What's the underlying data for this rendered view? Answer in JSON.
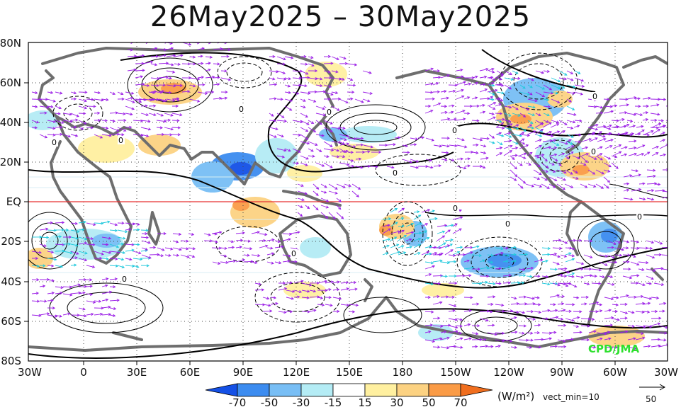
{
  "title": "26May2025 – 30May2025",
  "lat_labels": [
    "80N",
    "60N",
    "40N",
    "20N",
    "EQ",
    "20S",
    "40S",
    "60S",
    "80S"
  ],
  "lon_labels": [
    "30W",
    "0",
    "30E",
    "60E",
    "90E",
    "120E",
    "150E",
    "180",
    "150W",
    "120W",
    "90W",
    "60W",
    "30W"
  ],
  "colorbar": {
    "ticks": [
      "-70",
      "-50",
      "-30",
      "-15",
      "15",
      "30",
      "50",
      "70"
    ],
    "colors": [
      "#1450e6",
      "#3c8cf0",
      "#78bef5",
      "#b4ecf5",
      "#ffffff",
      "#fff0a0",
      "#fcd282",
      "#fa9b46",
      "#f06e1e"
    ],
    "units": "(W/m²)"
  },
  "vector": {
    "min_label": "vect_min=10",
    "reference": "50"
  },
  "credit": "CPD/JMA",
  "colors": {
    "vector": "#9b1ee6",
    "vector_strong": "#1ec8dc",
    "coast": "#6e6e6e",
    "equator": "#e63232",
    "contour": "#000000"
  }
}
